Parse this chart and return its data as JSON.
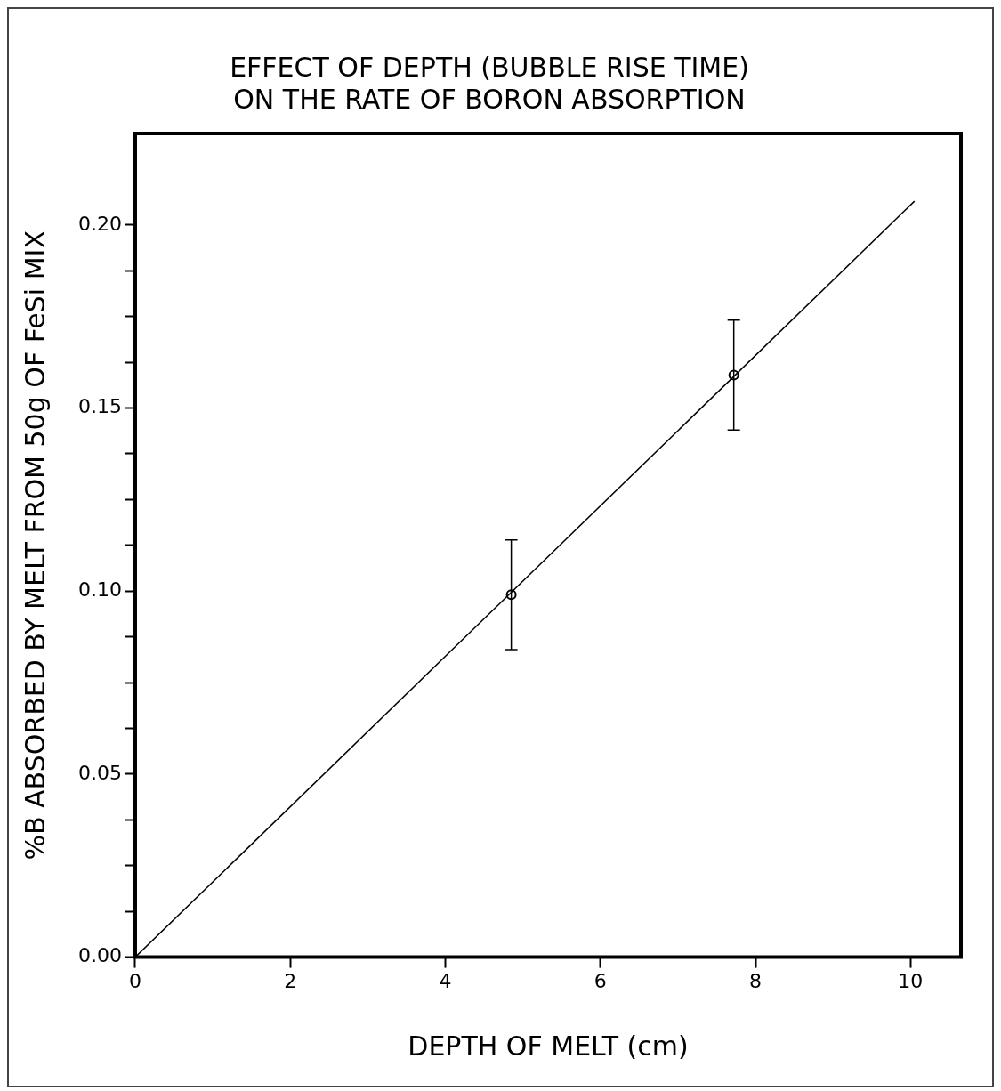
{
  "chart_data": {
    "type": "scatter",
    "title": [
      "EFFECT OF DEPTH (BUBBLE RISE TIME)",
      "ON THE RATE OF BORON ABSORPTION"
    ],
    "xlabel": "DEPTH OF MELT (cm)",
    "ylabel": "%B ABSORBED BY MELT FROM 50g OF FeSi MIX",
    "xlim": [
      0,
      10.65
    ],
    "xticks": [
      0,
      2,
      4,
      6,
      8,
      10
    ],
    "ylim": [
      0,
      0.225
    ],
    "yticks": [
      {
        "value": 0,
        "label": "0.00"
      },
      {
        "value": 0.0125,
        "label": null
      },
      {
        "value": 0.025,
        "label": null
      },
      {
        "value": 0.0375,
        "label": null
      },
      {
        "value": 0.05,
        "label": "0.05"
      },
      {
        "value": 0.0625,
        "label": null
      },
      {
        "value": 0.075,
        "label": null
      },
      {
        "value": 0.0875,
        "label": null
      },
      {
        "value": 0.1,
        "label": "0.10"
      },
      {
        "value": 0.1125,
        "label": null
      },
      {
        "value": 0.125,
        "label": null
      },
      {
        "value": 0.1375,
        "label": null
      },
      {
        "value": 0.15,
        "label": "0.15"
      },
      {
        "value": 0.1625,
        "label": null
      },
      {
        "value": 0.175,
        "label": null
      },
      {
        "value": 0.1875,
        "label": null
      },
      {
        "value": 0.2,
        "label": "0.20"
      }
    ],
    "grid": false,
    "legend": false,
    "marker": "circle",
    "series": [
      {
        "color": "#000000",
        "x": [
          4.85,
          7.72
        ],
        "values": [
          0.099,
          0.159
        ],
        "errors": [
          0.015,
          0.015
        ]
      },
      {
        "type": "line",
        "color": "#000000",
        "x": [
          0,
          10.05
        ],
        "values": [
          0,
          0.2065
        ],
        "line_style": "solid",
        "marker": "none"
      }
    ]
  }
}
